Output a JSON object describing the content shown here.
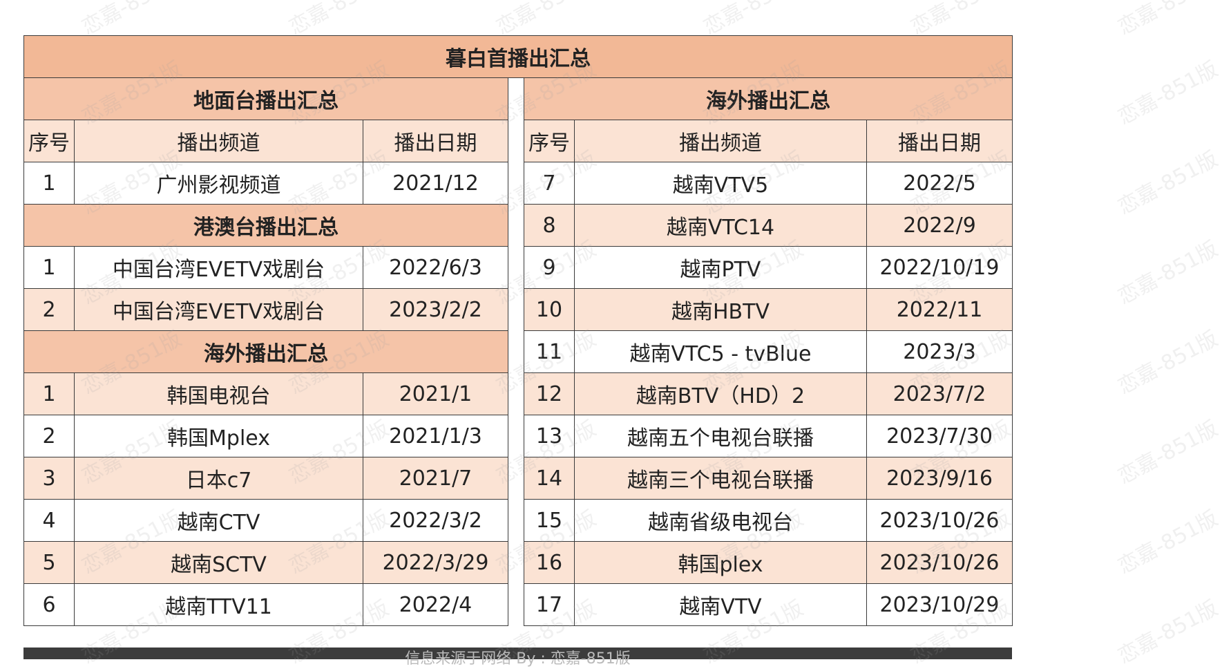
{
  "title": "暮白首播出汇总",
  "left": {
    "ground_title": "地面台播出汇总",
    "col_no": "序号",
    "col_channel": "播出频道",
    "col_date": "播出日期",
    "ground_rows": [
      {
        "no": "1",
        "channel": "广州影视频道",
        "date": "2021/12"
      }
    ],
    "hkmo_title": "港澳台播出汇总",
    "hkmo_rows": [
      {
        "no": "1",
        "channel": "中国台湾EVETV戏剧台",
        "date": "2022/6/3"
      },
      {
        "no": "2",
        "channel": "中国台湾EVETV戏剧台",
        "date": "2023/2/2"
      }
    ],
    "overseas_title": "海外播出汇总",
    "overseas_rows": [
      {
        "no": "1",
        "channel": "韩国电视台",
        "date": "2021/1"
      },
      {
        "no": "2",
        "channel": "韩国Mplex",
        "date": "2021/1/3"
      },
      {
        "no": "3",
        "channel": "日本c7",
        "date": "2021/7"
      },
      {
        "no": "4",
        "channel": "越南CTV",
        "date": "2022/3/2"
      },
      {
        "no": "5",
        "channel": "越南SCTV",
        "date": "2022/3/29"
      },
      {
        "no": "6",
        "channel": "越南TTV11",
        "date": "2022/4"
      }
    ]
  },
  "right": {
    "title": "海外播出汇总",
    "col_no": "序号",
    "col_channel": "播出频道",
    "col_date": "播出日期",
    "rows": [
      {
        "no": "7",
        "channel": "越南VTV5",
        "date": "2022/5"
      },
      {
        "no": "8",
        "channel": "越南VTC14",
        "date": "2022/9"
      },
      {
        "no": "9",
        "channel": "越南PTV",
        "date": "2022/10/19"
      },
      {
        "no": "10",
        "channel": "越南HBTV",
        "date": "2022/11"
      },
      {
        "no": "11",
        "channel": "越南VTC5 - tvBlue",
        "date": "2023/3"
      },
      {
        "no": "12",
        "channel": "越南BTV（HD）2",
        "date": "2023/7/2"
      },
      {
        "no": "13",
        "channel": "越南五个电视台联播",
        "date": "2023/7/30"
      },
      {
        "no": "14",
        "channel": "越南三个电视台联播",
        "date": "2023/9/16"
      },
      {
        "no": "15",
        "channel": "越南省级电视台",
        "date": "2023/10/26"
      },
      {
        "no": "16",
        "channel": "韩国plex",
        "date": "2023/10/26"
      },
      {
        "no": "17",
        "channel": "越南VTV",
        "date": "2023/10/29"
      }
    ]
  },
  "footer": "信息来源于网络 By : 恋嘉-851版",
  "watermark": "恋嘉-851版",
  "colors": {
    "title_bg": "#f2b896",
    "section_bg": "#f5c4a8",
    "alt_row_bg": "#fbe3d4",
    "footer_bg": "#3c3c3c"
  }
}
